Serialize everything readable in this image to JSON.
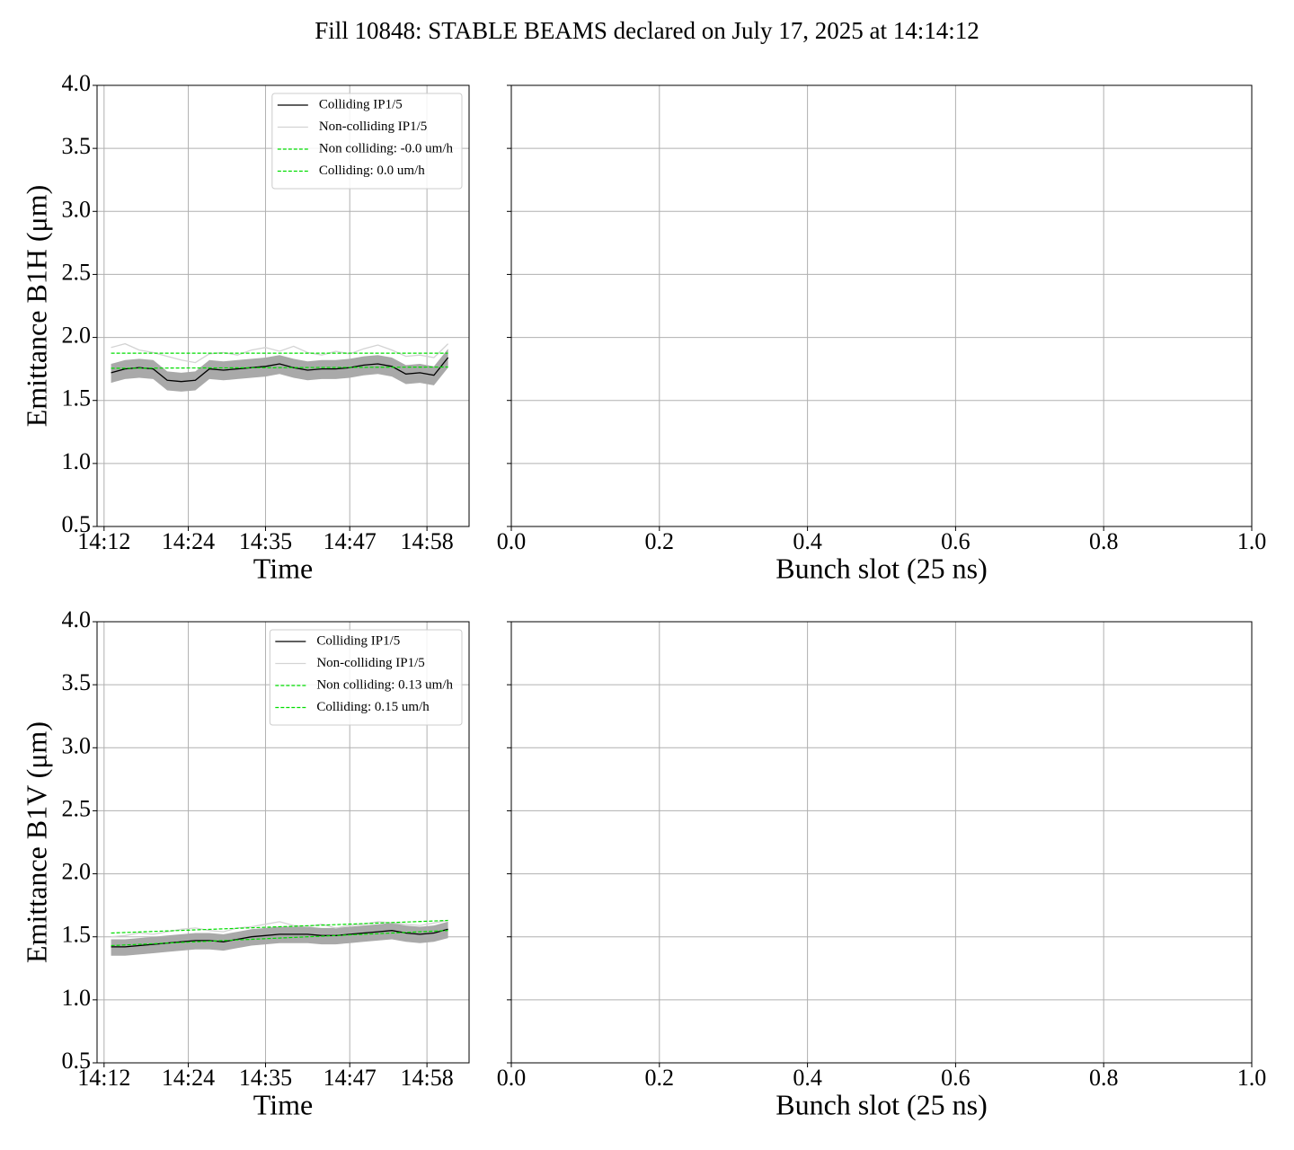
{
  "title": "Fill 10848: STABLE BEAMS declared on July 17, 2025 at 14:14:12",
  "chart_data": [
    {
      "type": "line",
      "xlabel": "Time",
      "ylabel": "Emittance B1H (μm)",
      "x": [
        "14:13",
        "14:15",
        "14:17",
        "14:19",
        "14:21",
        "14:23",
        "14:25",
        "14:27",
        "14:29",
        "14:31",
        "14:33",
        "14:35",
        "14:37",
        "14:39",
        "14:41",
        "14:43",
        "14:45",
        "14:47",
        "14:49",
        "14:51",
        "14:53",
        "14:55",
        "14:57",
        "14:59",
        "15:01"
      ],
      "xlim": [
        "14:11",
        "15:04"
      ],
      "xticks": [
        "14:12",
        "14:24",
        "14:35",
        "14:47",
        "14:58"
      ],
      "ylim": [
        0.5,
        4.0
      ],
      "yticks": [
        {
          "value": 0.5,
          "label": "0.5"
        },
        {
          "value": 1.0,
          "label": "1.0"
        },
        {
          "value": 1.5,
          "label": "1.5"
        },
        {
          "value": 2.0,
          "label": "2.0"
        },
        {
          "value": 2.5,
          "label": "2.5"
        },
        {
          "value": 3.0,
          "label": "3.0"
        },
        {
          "value": 3.5,
          "label": "3.5"
        },
        {
          "value": 4.0,
          "label": "4.0"
        }
      ],
      "grid": true,
      "legend": "upper right",
      "band": {
        "color": "#a9a9a9",
        "lower": [
          1.64,
          1.67,
          1.68,
          1.67,
          1.58,
          1.57,
          1.58,
          1.67,
          1.66,
          1.67,
          1.68,
          1.69,
          1.71,
          1.68,
          1.66,
          1.67,
          1.67,
          1.68,
          1.7,
          1.71,
          1.69,
          1.63,
          1.64,
          1.62,
          1.76
        ],
        "upper": [
          1.79,
          1.82,
          1.83,
          1.82,
          1.73,
          1.72,
          1.73,
          1.82,
          1.81,
          1.82,
          1.83,
          1.84,
          1.86,
          1.83,
          1.81,
          1.82,
          1.82,
          1.83,
          1.85,
          1.86,
          1.84,
          1.78,
          1.79,
          1.77,
          1.91
        ]
      },
      "series": [
        {
          "name": "Colliding IP1/5",
          "color": "#000000",
          "style": "solid",
          "values": [
            1.72,
            1.75,
            1.76,
            1.75,
            1.66,
            1.65,
            1.66,
            1.75,
            1.74,
            1.75,
            1.76,
            1.77,
            1.79,
            1.76,
            1.74,
            1.75,
            1.75,
            1.76,
            1.78,
            1.79,
            1.77,
            1.71,
            1.72,
            1.7,
            1.84
          ]
        },
        {
          "name": "Non-colliding IP1/5",
          "color": "#d3d3d3",
          "style": "solid",
          "values": [
            1.92,
            1.95,
            1.9,
            1.88,
            1.85,
            1.82,
            1.8,
            1.87,
            1.88,
            1.86,
            1.9,
            1.92,
            1.89,
            1.93,
            1.88,
            1.86,
            1.89,
            1.87,
            1.91,
            1.94,
            1.9,
            1.85,
            1.86,
            1.84,
            1.95
          ]
        },
        {
          "name": "Non colliding: -0.0 um/h",
          "color": "#00dd00",
          "style": "dashed",
          "x": [
            "14:13",
            "15:01"
          ],
          "values": [
            1.875,
            1.875
          ]
        },
        {
          "name": "Colliding: 0.0 um/h",
          "color": "#00dd00",
          "style": "dashed",
          "x": [
            "14:13",
            "15:01"
          ],
          "values": [
            1.755,
            1.765
          ]
        }
      ]
    },
    {
      "type": "scatter",
      "xlabel": "Bunch slot (25 ns)",
      "series": [],
      "xlim": [
        0,
        1
      ],
      "xticks": [
        {
          "value": 0,
          "label": "0.0"
        },
        {
          "value": 0.2,
          "label": "0.2"
        },
        {
          "value": 0.4,
          "label": "0.4"
        },
        {
          "value": 0.6,
          "label": "0.6"
        },
        {
          "value": 0.8,
          "label": "0.8"
        },
        {
          "value": 1.0,
          "label": "1.0"
        }
      ],
      "ylim": [
        0.5,
        4.0
      ],
      "yticks": [
        0.5,
        1,
        1.5,
        2,
        2.5,
        3,
        3.5,
        4
      ],
      "ytick_labels": false,
      "grid": true
    },
    {
      "type": "line",
      "xlabel": "Time",
      "ylabel": "Emittance B1V (μm)",
      "x": [
        "14:13",
        "14:15",
        "14:17",
        "14:19",
        "14:21",
        "14:23",
        "14:25",
        "14:27",
        "14:29",
        "14:31",
        "14:33",
        "14:35",
        "14:37",
        "14:39",
        "14:41",
        "14:43",
        "14:45",
        "14:47",
        "14:49",
        "14:51",
        "14:53",
        "14:55",
        "14:57",
        "14:59",
        "15:01"
      ],
      "xlim": [
        "14:11",
        "15:04"
      ],
      "xticks": [
        "14:12",
        "14:24",
        "14:35",
        "14:47",
        "14:58"
      ],
      "ylim": [
        0.5,
        4.0
      ],
      "yticks": [
        {
          "value": 0.5,
          "label": "0.5"
        },
        {
          "value": 1.0,
          "label": "1.0"
        },
        {
          "value": 1.5,
          "label": "1.5"
        },
        {
          "value": 2.0,
          "label": "2.0"
        },
        {
          "value": 2.5,
          "label": "2.5"
        },
        {
          "value": 3.0,
          "label": "3.0"
        },
        {
          "value": 3.5,
          "label": "3.5"
        },
        {
          "value": 4.0,
          "label": "4.0"
        }
      ],
      "grid": true,
      "legend": "upper right",
      "band": {
        "color": "#a9a9a9",
        "lower": [
          1.35,
          1.35,
          1.36,
          1.37,
          1.38,
          1.39,
          1.4,
          1.4,
          1.39,
          1.41,
          1.43,
          1.44,
          1.45,
          1.45,
          1.45,
          1.44,
          1.44,
          1.45,
          1.46,
          1.47,
          1.48,
          1.46,
          1.45,
          1.46,
          1.49
        ],
        "upper": [
          1.48,
          1.48,
          1.49,
          1.5,
          1.51,
          1.52,
          1.53,
          1.53,
          1.52,
          1.54,
          1.56,
          1.57,
          1.58,
          1.58,
          1.58,
          1.57,
          1.57,
          1.58,
          1.59,
          1.6,
          1.61,
          1.59,
          1.58,
          1.59,
          1.62
        ]
      },
      "series": [
        {
          "name": "Colliding IP1/5",
          "color": "#000000",
          "style": "solid",
          "values": [
            1.42,
            1.42,
            1.43,
            1.44,
            1.45,
            1.46,
            1.47,
            1.47,
            1.46,
            1.48,
            1.5,
            1.51,
            1.52,
            1.52,
            1.52,
            1.51,
            1.51,
            1.52,
            1.53,
            1.54,
            1.55,
            1.53,
            1.52,
            1.53,
            1.56
          ]
        },
        {
          "name": "Non-colliding IP1/5",
          "color": "#d3d3d3",
          "style": "solid",
          "values": [
            1.5,
            1.51,
            1.53,
            1.52,
            1.54,
            1.56,
            1.57,
            1.55,
            1.54,
            1.57,
            1.58,
            1.6,
            1.62,
            1.59,
            1.58,
            1.6,
            1.57,
            1.59,
            1.6,
            1.62,
            1.61,
            1.6,
            1.59,
            1.61,
            1.63
          ]
        },
        {
          "name": "Non colliding: 0.13 um/h",
          "color": "#00dd00",
          "style": "dashed",
          "x": [
            "14:13",
            "15:01"
          ],
          "values": [
            1.53,
            1.63
          ]
        },
        {
          "name": "Colliding: 0.15 um/h",
          "color": "#00dd00",
          "style": "dashed",
          "x": [
            "14:13",
            "15:01"
          ],
          "values": [
            1.43,
            1.55
          ]
        }
      ]
    },
    {
      "type": "scatter",
      "xlabel": "Bunch slot (25 ns)",
      "series": [],
      "xlim": [
        0,
        1
      ],
      "xticks": [
        {
          "value": 0,
          "label": "0.0"
        },
        {
          "value": 0.2,
          "label": "0.2"
        },
        {
          "value": 0.4,
          "label": "0.4"
        },
        {
          "value": 0.6,
          "label": "0.6"
        },
        {
          "value": 0.8,
          "label": "0.8"
        },
        {
          "value": 1.0,
          "label": "1.0"
        }
      ],
      "ylim": [
        0.5,
        4.0
      ],
      "yticks": [
        0.5,
        1,
        1.5,
        2,
        2.5,
        3,
        3.5,
        4
      ],
      "ytick_labels": false,
      "grid": true
    }
  ]
}
